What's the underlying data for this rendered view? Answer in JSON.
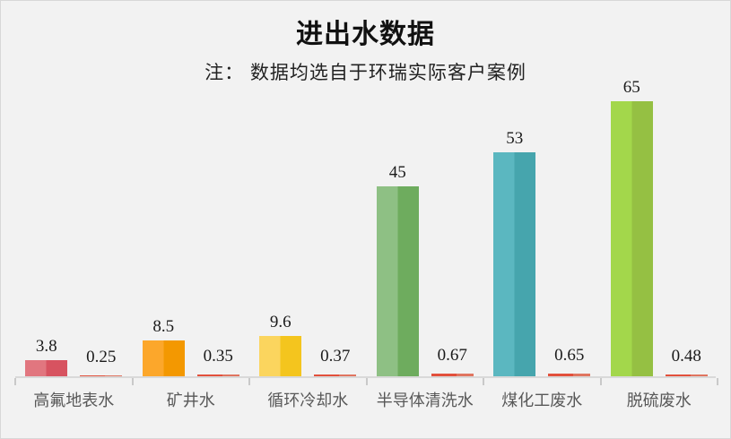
{
  "window": {
    "background_color": "#f2f2f2",
    "border_color": "#d8d8d8"
  },
  "chart_data": {
    "type": "bar",
    "title": "进出水数据",
    "subtitle": "注： 数据均选自于环瑞实际客户案例",
    "categories": [
      "高氟地表水",
      "矿井水",
      "循环冷却水",
      "半导体清洗水",
      "煤化工废水",
      "脱硫废水"
    ],
    "series": [
      {
        "role": "inlet-large-bars",
        "values": [
          3.8,
          8.5,
          9.6,
          45,
          53,
          65
        ],
        "value_labels": [
          "3.8",
          "8.5",
          "9.6",
          "45",
          "53",
          "65"
        ],
        "bar_colors": [
          {
            "light": "#e1767f",
            "dark": "#d75360"
          },
          {
            "light": "#fca72b",
            "dark": "#f39801"
          },
          {
            "light": "#fbd55e",
            "dark": "#f4c51e"
          },
          {
            "light": "#8ec084",
            "dark": "#6eac5e"
          },
          {
            "light": "#5bb7c0",
            "dark": "#46a5ad"
          },
          {
            "light": "#a3d74b",
            "dark": "#95c043"
          }
        ]
      },
      {
        "role": "outlet-small-bars",
        "values": [
          0.25,
          0.35,
          0.37,
          0.67,
          0.65,
          0.48
        ],
        "value_labels": [
          "0.25",
          "0.35",
          "0.37",
          "0.67",
          "0.65",
          "0.48"
        ],
        "bar_color": {
          "light": "#e2503c",
          "dark": "#e07560"
        }
      }
    ],
    "ylim": [
      0,
      65
    ],
    "grid": false,
    "legend": false,
    "axis_color": "#d9d9d9",
    "tick_color": "#c9c9c9",
    "category_label_color": "#595959",
    "value_label_color": "#1a1a1a"
  }
}
